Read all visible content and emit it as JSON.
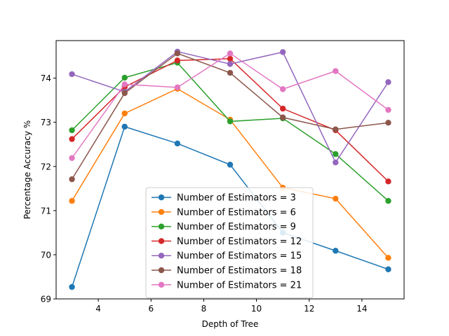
{
  "chart_data": {
    "type": "line",
    "title": "",
    "xlabel": "Depth of Tree",
    "ylabel": "Percentage Accuracy %",
    "x": [
      3,
      5,
      7,
      9,
      11,
      13,
      15
    ],
    "xlim": [
      2.4,
      15.6
    ],
    "ylim": [
      69,
      74.85
    ],
    "xticks": [
      4,
      6,
      8,
      10,
      12,
      14
    ],
    "yticks": [
      69,
      70,
      71,
      72,
      73,
      74
    ],
    "grid": false,
    "legend_position": "lower-center",
    "series": [
      {
        "name": "Number of Estimators = 3",
        "color": "#1f77b4",
        "values": [
          69.27,
          72.9,
          72.52,
          72.04,
          70.5,
          70.09,
          69.67
        ]
      },
      {
        "name": "Number of Estimators = 6",
        "color": "#ff7f0e",
        "values": [
          71.22,
          73.2,
          73.76,
          73.06,
          71.52,
          71.27,
          69.93
        ]
      },
      {
        "name": "Number of Estimators = 9",
        "color": "#2ca02c",
        "values": [
          72.82,
          74.01,
          74.35,
          73.02,
          73.09,
          72.28,
          71.22
        ]
      },
      {
        "name": "Number of Estimators = 12",
        "color": "#d62728",
        "values": [
          72.62,
          73.8,
          74.4,
          74.44,
          73.31,
          72.82,
          71.66
        ]
      },
      {
        "name": "Number of Estimators = 15",
        "color": "#9467bd",
        "values": [
          74.09,
          73.69,
          74.6,
          74.32,
          74.59,
          72.09,
          73.91
        ]
      },
      {
        "name": "Number of Estimators = 18",
        "color": "#8c564b",
        "values": [
          71.71,
          73.66,
          74.56,
          74.12,
          73.11,
          72.84,
          72.99
        ]
      },
      {
        "name": "Number of Estimators = 21",
        "color": "#e377c2",
        "values": [
          72.19,
          73.86,
          73.79,
          74.56,
          73.75,
          74.16,
          73.28
        ]
      }
    ]
  }
}
